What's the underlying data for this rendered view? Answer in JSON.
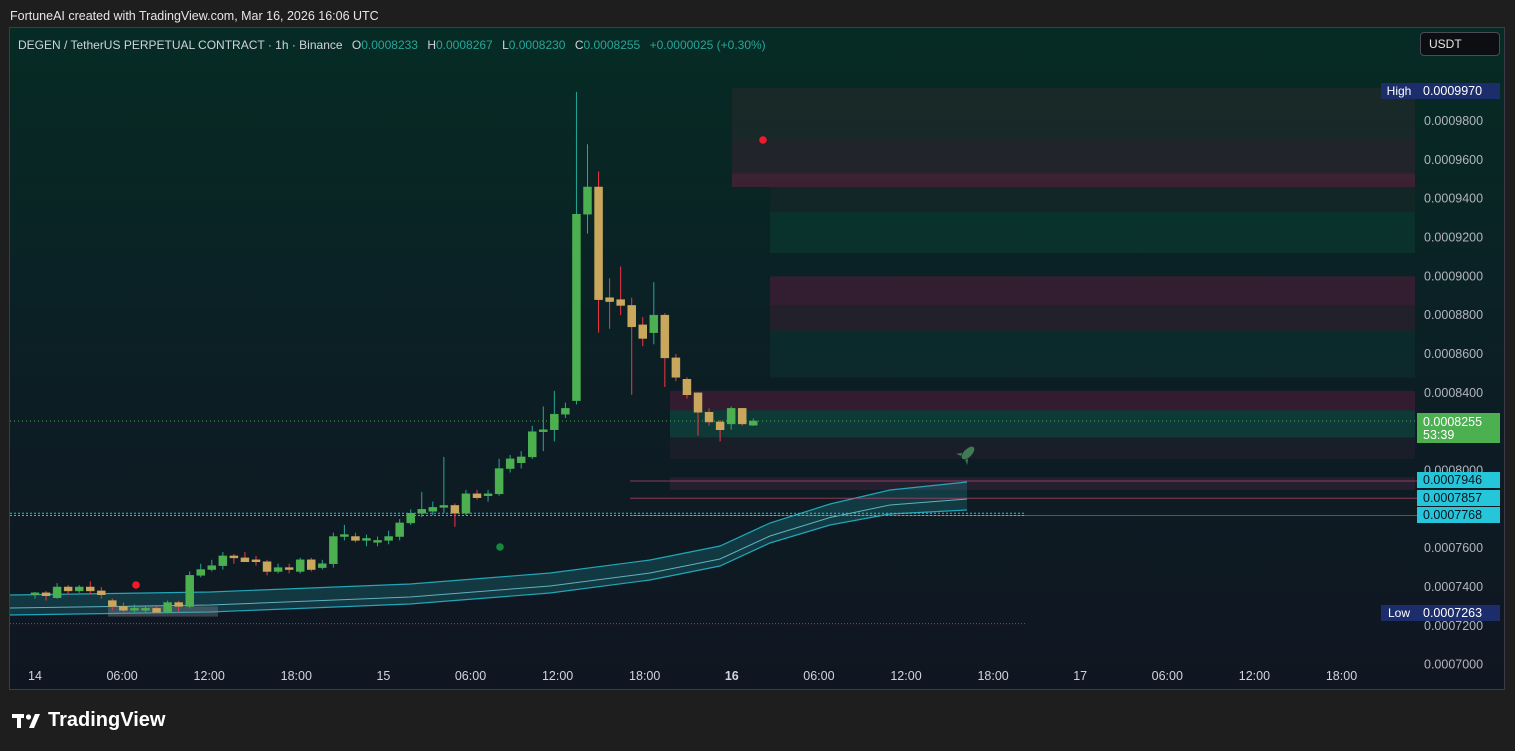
{
  "credit": "FortuneAI created with TradingView.com, Mar 16, 2026 16:06 UTC",
  "symbol": {
    "title": "DEGEN / TetherUS PERPETUAL CONTRACT · 1h · Binance",
    "o_label": "O",
    "o": "0.0008233",
    "h_label": "H",
    "h": "0.0008267",
    "l_label": "L",
    "l": "0.0008230",
    "c_label": "C",
    "c": "0.0008255",
    "change": "+0.0000025 (+0.30%)"
  },
  "currency_button": "USDT",
  "brand": "TradingView",
  "colors": {
    "up": "#4caf50",
    "down": "#c9a85e",
    "wick_up": "#26a69a",
    "wick_down": "#f23645",
    "band": "#26c6da",
    "high_badge": "#1c2d6b",
    "price_badge": "#4caf50",
    "level_badge": "#26c6da"
  },
  "chart_data": {
    "type": "candlestick",
    "interval": "1h",
    "y_ticks": [
      "0.0009800",
      "0.0009600",
      "0.0009400",
      "0.0009200",
      "0.0009000",
      "0.0008800",
      "0.0008600",
      "0.0008400",
      "0.0008000",
      "0.0007600",
      "0.0007400",
      "0.0007200",
      "0.0007000"
    ],
    "y_range": [
      0.0007,
      0.001
    ],
    "x_ticks": [
      {
        "label": "14",
        "bold": false
      },
      {
        "label": "06:00",
        "bold": false
      },
      {
        "label": "12:00",
        "bold": false
      },
      {
        "label": "18:00",
        "bold": false
      },
      {
        "label": "15",
        "bold": false
      },
      {
        "label": "06:00",
        "bold": false
      },
      {
        "label": "12:00",
        "bold": false
      },
      {
        "label": "18:00",
        "bold": false
      },
      {
        "label": "16",
        "bold": true
      },
      {
        "label": "06:00",
        "bold": false
      },
      {
        "label": "12:00",
        "bold": false
      },
      {
        "label": "18:00",
        "bold": false
      },
      {
        "label": "17",
        "bold": false
      },
      {
        "label": "06:00",
        "bold": false
      },
      {
        "label": "12:00",
        "bold": false
      },
      {
        "label": "18:00",
        "bold": false
      }
    ],
    "high": {
      "label": "High",
      "value": "0.0009970"
    },
    "low": {
      "label": "Low",
      "value": "0.0007263"
    },
    "last_price": {
      "value": "0.0008255",
      "countdown": "53:39"
    },
    "levels": [
      "0.0007946",
      "0.0007857",
      "0.0007768"
    ],
    "candles": [
      [
        0.000736,
        0.0007375,
        0.000734,
        0.000737
      ],
      [
        0.000737,
        0.000738,
        0.000733,
        0.0007355
      ],
      [
        0.0007345,
        0.000742,
        0.000734,
        0.00074
      ],
      [
        0.00074,
        0.000741,
        0.000736,
        0.000738
      ],
      [
        0.000738,
        0.000741,
        0.000737,
        0.00074
      ],
      [
        0.00074,
        0.000743,
        0.000736,
        0.000738
      ],
      [
        0.000738,
        0.00074,
        0.000734,
        0.000736
      ],
      [
        0.000733,
        0.000734,
        0.000728,
        0.00073
      ],
      [
        0.00073,
        0.000732,
        0.000727,
        0.000728
      ],
      [
        0.000728,
        0.000731,
        0.000727,
        0.000729
      ],
      [
        0.000728,
        0.00073,
        0.000727,
        0.000729
      ],
      [
        0.000729,
        0.00073,
        0.0007263,
        0.000727
      ],
      [
        0.000727,
        0.000733,
        0.0007263,
        0.000732
      ],
      [
        0.000732,
        0.000733,
        0.000727,
        0.00073
      ],
      [
        0.00073,
        0.000748,
        0.000729,
        0.000746
      ],
      [
        0.000746,
        0.000752,
        0.000745,
        0.000749
      ],
      [
        0.000749,
        0.000754,
        0.000748,
        0.000751
      ],
      [
        0.000751,
        0.000758,
        0.000749,
        0.000756
      ],
      [
        0.000756,
        0.000757,
        0.000752,
        0.000755
      ],
      [
        0.000755,
        0.000758,
        0.000753,
        0.000753
      ],
      [
        0.000754,
        0.000756,
        0.000751,
        0.000753
      ],
      [
        0.000753,
        0.000754,
        0.000746,
        0.000748
      ],
      [
        0.000748,
        0.000752,
        0.000747,
        0.00075
      ],
      [
        0.00075,
        0.000752,
        0.000747,
        0.000749
      ],
      [
        0.000748,
        0.000755,
        0.000747,
        0.000754
      ],
      [
        0.000754,
        0.000755,
        0.000748,
        0.000749
      ],
      [
        0.00075,
        0.000754,
        0.000749,
        0.000752
      ],
      [
        0.000752,
        0.000768,
        0.00075,
        0.000766
      ],
      [
        0.000766,
        0.000772,
        0.000764,
        0.000767
      ],
      [
        0.000766,
        0.000768,
        0.000763,
        0.000764
      ],
      [
        0.000764,
        0.000767,
        0.000761,
        0.000765
      ],
      [
        0.000763,
        0.000766,
        0.000761,
        0.000764
      ],
      [
        0.000764,
        0.000769,
        0.000762,
        0.000766
      ],
      [
        0.000766,
        0.000775,
        0.000764,
        0.000773
      ],
      [
        0.000773,
        0.00078,
        0.000772,
        0.000778
      ],
      [
        0.000778,
        0.000789,
        0.000776,
        0.00078
      ],
      [
        0.000779,
        0.000784,
        0.000777,
        0.000781
      ],
      [
        0.000781,
        0.000807,
        0.000778,
        0.000782
      ],
      [
        0.000782,
        0.000783,
        0.000771,
        0.000778
      ],
      [
        0.000778,
        0.00079,
        0.000777,
        0.000788
      ],
      [
        0.000788,
        0.00079,
        0.000785,
        0.000786
      ],
      [
        0.000787,
        0.00079,
        0.000784,
        0.000788
      ],
      [
        0.000788,
        0.000806,
        0.000787,
        0.000801
      ],
      [
        0.000801,
        0.000808,
        0.000799,
        0.000806
      ],
      [
        0.000804,
        0.00081,
        0.000801,
        0.000807
      ],
      [
        0.000807,
        0.000823,
        0.000806,
        0.00082
      ],
      [
        0.00082,
        0.000833,
        0.00081,
        0.000821
      ],
      [
        0.000821,
        0.000841,
        0.000815,
        0.000829
      ],
      [
        0.000829,
        0.000835,
        0.000827,
        0.000832
      ],
      [
        0.000836,
        0.000995,
        0.000834,
        0.000932
      ],
      [
        0.000932,
        0.000968,
        0.000922,
        0.000946
      ],
      [
        0.000946,
        0.000954,
        0.000871,
        0.000888
      ],
      [
        0.000889,
        0.000899,
        0.000873,
        0.000887
      ],
      [
        0.000888,
        0.000905,
        0.00088,
        0.000885
      ],
      [
        0.000885,
        0.000889,
        0.000839,
        0.000874
      ],
      [
        0.000875,
        0.000879,
        0.000864,
        0.000868
      ],
      [
        0.000871,
        0.000897,
        0.000865,
        0.00088
      ],
      [
        0.00088,
        0.000881,
        0.000843,
        0.000858
      ],
      [
        0.000858,
        0.00086,
        0.000846,
        0.000848
      ],
      [
        0.000847,
        0.000848,
        0.000837,
        0.000839
      ],
      [
        0.00084,
        0.00084,
        0.000818,
        0.00083
      ],
      [
        0.00083,
        0.000832,
        0.000823,
        0.000825
      ],
      [
        0.000825,
        0.000826,
        0.000815,
        0.000821
      ],
      [
        0.000824,
        0.000833,
        0.000821,
        0.000832
      ],
      [
        0.000832,
        0.000832,
        0.000823,
        0.000824
      ],
      [
        0.0008233,
        0.0008267,
        0.000823,
        0.0008255
      ]
    ]
  }
}
